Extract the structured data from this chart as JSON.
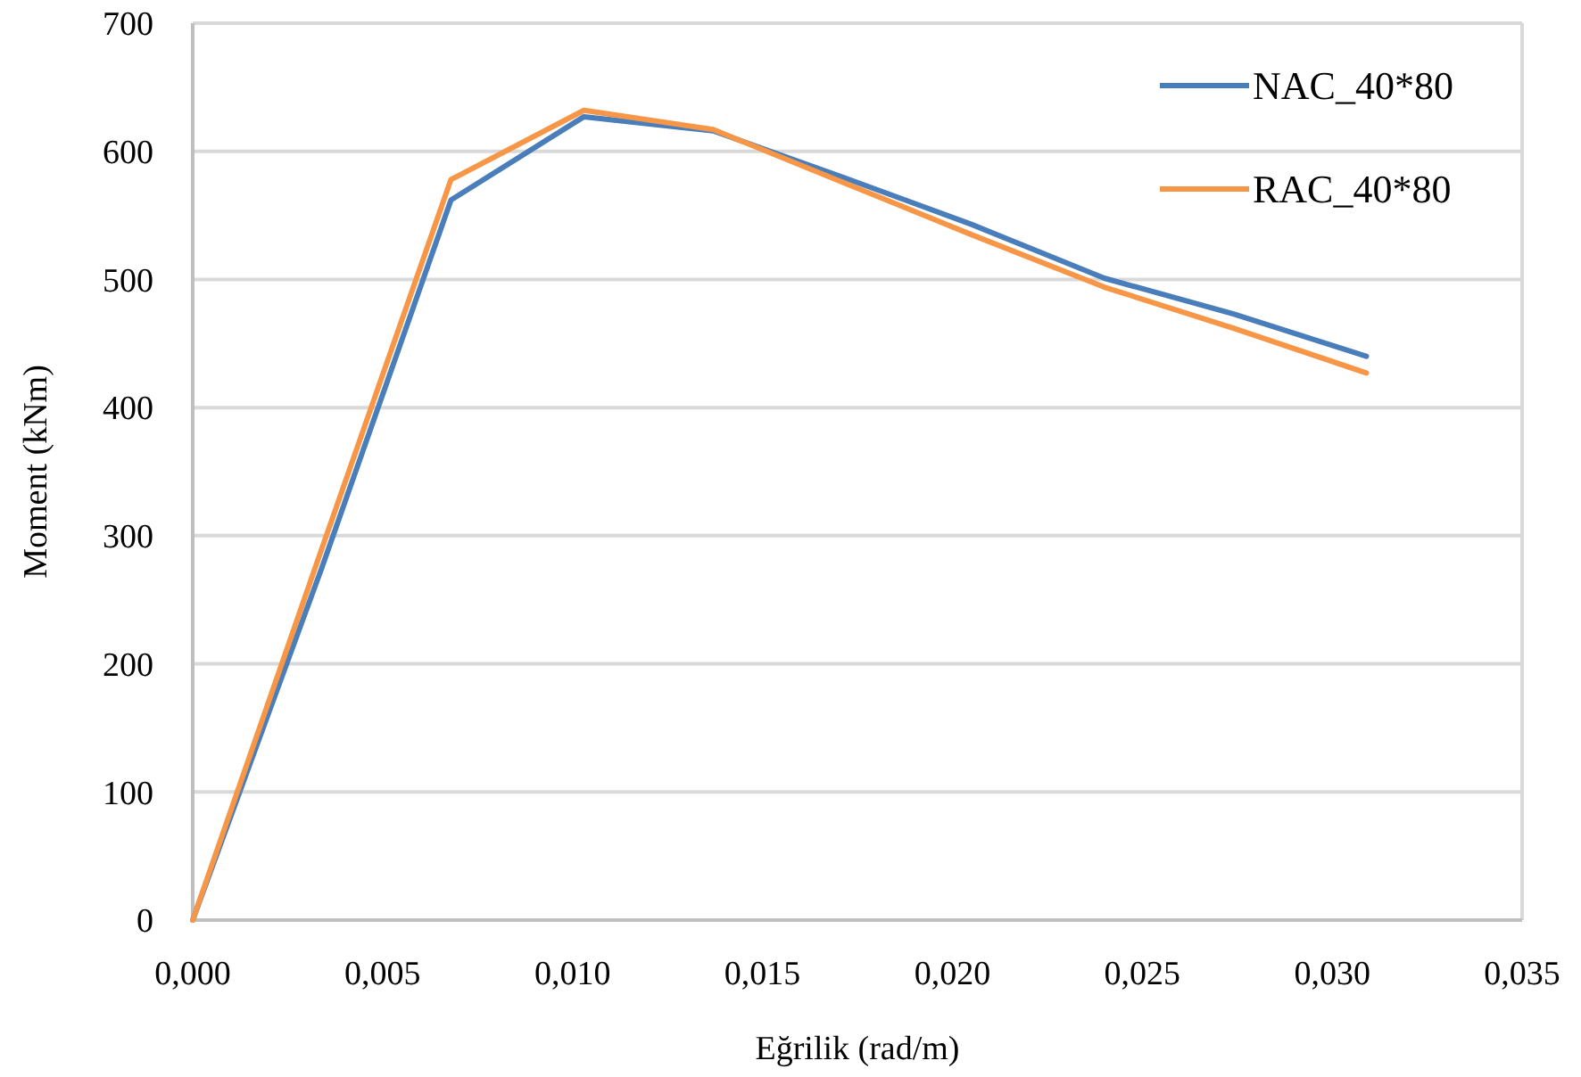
{
  "chart_data": {
    "type": "line",
    "xlabel": "Eğrilik (rad/m)",
    "ylabel": "Moment (kNm)",
    "x": [
      0,
      0.0034,
      0.0068,
      0.0103,
      0.0137,
      0.0171,
      0.0205,
      0.024,
      0.0274,
      0.0309
    ],
    "series": [
      {
        "name": "NAC_40*80",
        "color": "#4a7ebb",
        "values": [
          0,
          275,
          562,
          627,
          616,
          580,
          543,
          501,
          473,
          440
        ]
      },
      {
        "name": "RAC_40*80",
        "color": "#f79646",
        "values": [
          0,
          290,
          578,
          632,
          617,
          576,
          535,
          494,
          462,
          427
        ]
      }
    ],
    "xlim": [
      0,
      0.035
    ],
    "xticks": [
      {
        "value": 0,
        "label": "0,000"
      },
      {
        "value": 0.005,
        "label": "0,005"
      },
      {
        "value": 0.01,
        "label": "0,010"
      },
      {
        "value": 0.015,
        "label": "0,015"
      },
      {
        "value": 0.02,
        "label": "0,020"
      },
      {
        "value": 0.025,
        "label": "0,025"
      },
      {
        "value": 0.03,
        "label": "0,030"
      },
      {
        "value": 0.035,
        "label": "0,035"
      }
    ],
    "ylim": [
      0,
      700
    ],
    "yticks": [
      0,
      100,
      200,
      300,
      400,
      500,
      600,
      700
    ],
    "grid": "y",
    "legend": "top right",
    "marker": "none",
    "line_style": "solid"
  }
}
